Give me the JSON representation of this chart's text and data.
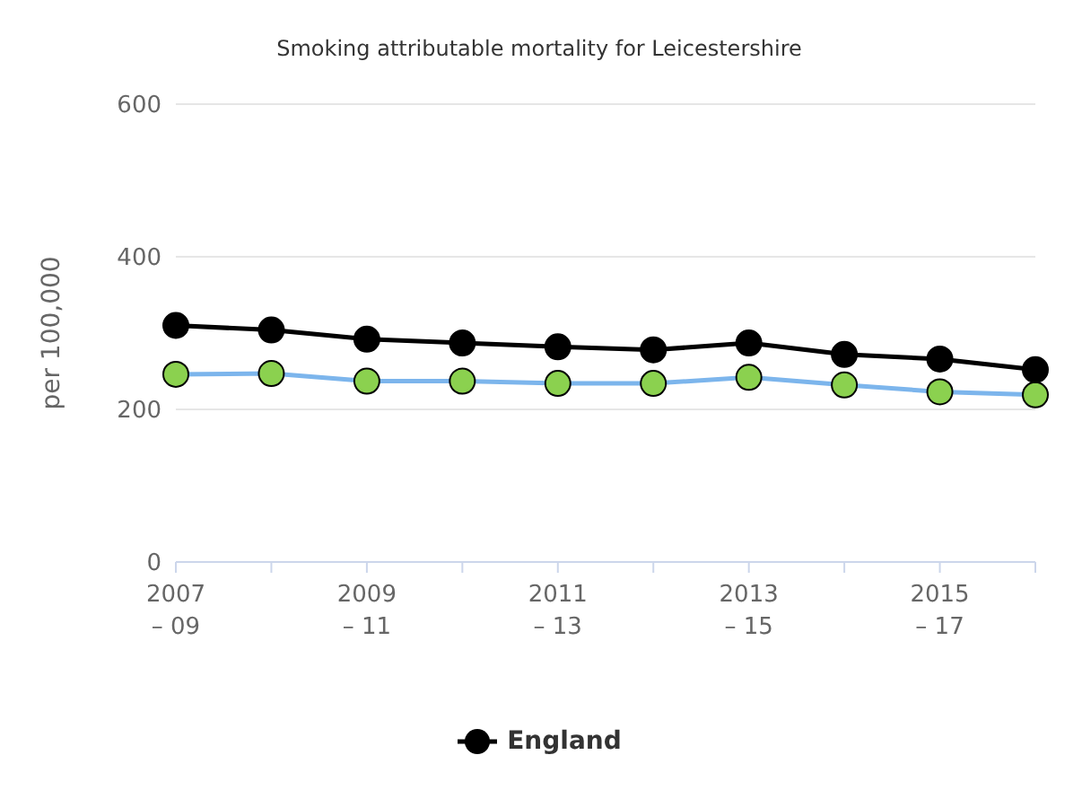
{
  "chart_data": {
    "type": "line",
    "title": "Smoking attributable mortality for Leicestershire",
    "ylabel": "per 100,000",
    "categories": [
      "2007 – 09",
      null,
      "2009 – 11",
      null,
      "2011 – 13",
      null,
      "2013 – 15",
      null,
      "2015 – 17",
      null
    ],
    "series": [
      {
        "name": "England",
        "color": "#000000",
        "values": [
          310,
          304,
          292,
          287,
          282,
          278,
          287,
          272,
          266,
          252
        ]
      },
      {
        "color": "#7cb5ec",
        "colors": [
          "#8bd14f",
          "#8bd14f",
          "#8bd14f",
          "#8bd14f",
          "#8bd14f",
          "#8bd14f",
          "#8bd14f",
          "#8bd14f",
          "#8bd14f",
          "#8bd14f"
        ],
        "values": [
          246,
          247,
          237,
          237,
          234,
          234,
          242,
          232,
          223,
          219
        ]
      }
    ],
    "ylim": [
      0,
      600
    ],
    "yticks": [
      0,
      200,
      400,
      600
    ],
    "grid": "y",
    "legend": "bottom",
    "marker": "circle",
    "line_style": "solid"
  }
}
